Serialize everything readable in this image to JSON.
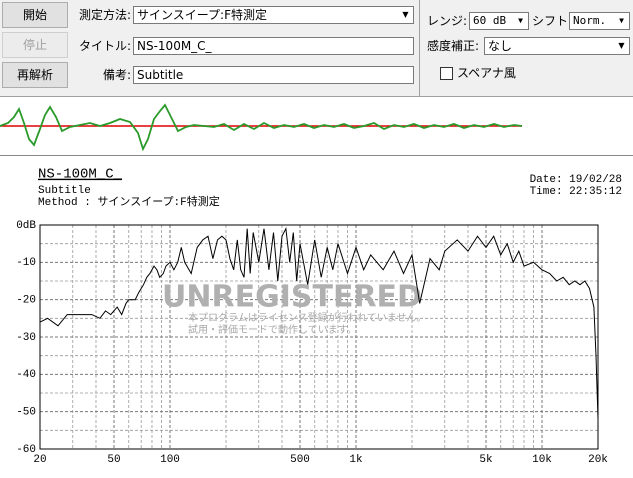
{
  "controls": {
    "start_button": "開始",
    "stop_button": "停止",
    "reanalyze_button": "再解析",
    "method_label": "測定方法:",
    "method_value": "サインスイープ:F特測定",
    "title_label": "タイトル:",
    "title_value": "NS-100M_C_",
    "note_label": "備考:",
    "note_value": "Subtitle",
    "range_label": "レンジ:",
    "range_value": "60 dB",
    "shift_label": "シフト:",
    "shift_value": "Norm.",
    "correction_label": "感度補正:",
    "correction_value": "なし",
    "spectrum_checkbox": "スペアナ風"
  },
  "chart_data": {
    "type": "line",
    "title": "NS-100M_C_",
    "subtitle": "Subtitle",
    "method": "Method : サインスイープ:F特測定",
    "date": "Date: 19/02/28",
    "time": "Time: 22:35:12",
    "watermark": "UNREGISTERED",
    "notice": [
      "本プログラムはライセンス登録が行われていません。",
      "試用・評価モードで動作しています。"
    ],
    "x": [
      20,
      22,
      25,
      28,
      32,
      38,
      42,
      45,
      48,
      52,
      55,
      58,
      60,
      62,
      65,
      68,
      72,
      75,
      78,
      82,
      85,
      88,
      92,
      95,
      100,
      105,
      110,
      115,
      120,
      130,
      140,
      150,
      160,
      170,
      180,
      190,
      200,
      210,
      220,
      230,
      240,
      250,
      260,
      270,
      280,
      300,
      320,
      340,
      360,
      380,
      400,
      420,
      440,
      460,
      480,
      500,
      550,
      600,
      650,
      700,
      750,
      800,
      900,
      1000,
      1100,
      1200,
      1400,
      1600,
      1800,
      2000,
      2200,
      2500,
      2800,
      3000,
      3500,
      4000,
      4500,
      5000,
      5500,
      6000,
      6500,
      7000,
      7500,
      8000,
      9000,
      10000,
      11000,
      12000,
      13000,
      14000,
      15000,
      16000,
      17000,
      18000,
      19000,
      19500,
      20000
    ],
    "series": [
      {
        "color": "#000000",
        "values": [
          -26,
          -25,
          -27,
          -24,
          -24,
          -24,
          -25,
          -23,
          -24,
          -22,
          -24,
          -21,
          -20,
          -20,
          -20,
          -18,
          -16,
          -14,
          -13,
          -11,
          -12,
          -14,
          -13,
          -11,
          -10,
          -12,
          -10,
          -6,
          -10,
          -13,
          -6,
          -4,
          -3,
          -9,
          -4,
          -3,
          -4,
          -9,
          -12,
          -4,
          -12,
          -14,
          -1,
          -13,
          -2,
          -10,
          -1,
          -12,
          -2,
          -15,
          -3,
          -1,
          -10,
          -2,
          -15,
          -5,
          -16,
          -4,
          -14,
          -6,
          -12,
          -5,
          -13,
          -6,
          -12,
          -8,
          -12,
          -7,
          -13,
          -8,
          -21,
          -9,
          -12,
          -7,
          -4,
          -7,
          -3,
          -6,
          -3,
          -8,
          -5,
          -10,
          -7,
          -11,
          -10,
          -12,
          -13,
          -15,
          -14,
          -16,
          -15,
          -16,
          -15,
          -17,
          -22,
          -35,
          -52
        ]
      }
    ],
    "xscale": "log",
    "xlim": [
      20,
      20000
    ],
    "xticks": [
      20,
      50,
      100,
      500,
      {
        "value": 1000,
        "label": "1k"
      },
      {
        "value": 5000,
        "label": "5k"
      },
      {
        "value": 10000,
        "label": "10k"
      },
      {
        "value": 20000,
        "label": "20k"
      }
    ],
    "ylim": [
      -60,
      0
    ],
    "yticks": [
      {
        "value": 0,
        "label": "0dB"
      },
      -10,
      -20,
      -30,
      -40,
      -50,
      -60
    ],
    "grid": true
  }
}
